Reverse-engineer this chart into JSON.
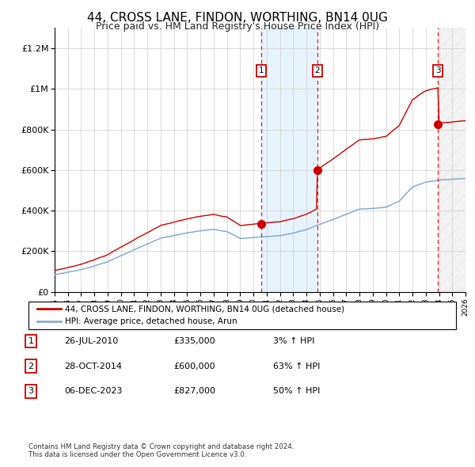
{
  "title": "44, CROSS LANE, FINDON, WORTHING, BN14 0UG",
  "subtitle": "Price paid vs. HM Land Registry's House Price Index (HPI)",
  "title_fontsize": 11,
  "subtitle_fontsize": 9,
  "hpi_color": "#88aacc",
  "price_color": "#cc0000",
  "ylim": [
    0,
    1300000
  ],
  "yticks": [
    0,
    200000,
    400000,
    600000,
    800000,
    1000000,
    1200000
  ],
  "ytick_labels": [
    "£0",
    "£200K",
    "£400K",
    "£600K",
    "£800K",
    "£1M",
    "£1.2M"
  ],
  "sale1_x": 2010.57,
  "sale1_price": 335000,
  "sale2_x": 2014.83,
  "sale2_price": 600000,
  "sale3_x": 2023.92,
  "sale3_price": 827000,
  "xmin": 1995,
  "xmax": 2026,
  "legend_house_label": "44, CROSS LANE, FINDON, WORTHING, BN14 0UG (detached house)",
  "legend_hpi_label": "HPI: Average price, detached house, Arun",
  "footnote": "Contains HM Land Registry data © Crown copyright and database right 2024.\nThis data is licensed under the Open Government Licence v3.0.",
  "table": [
    {
      "num": "1",
      "date": "26-JUL-2010",
      "price": "£335,000",
      "pct": "3% ↑ HPI"
    },
    {
      "num": "2",
      "date": "28-OCT-2014",
      "price": "£600,000",
      "pct": "63% ↑ HPI"
    },
    {
      "num": "3",
      "date": "06-DEC-2023",
      "price": "£827,000",
      "pct": "50% ↑ HPI"
    }
  ]
}
